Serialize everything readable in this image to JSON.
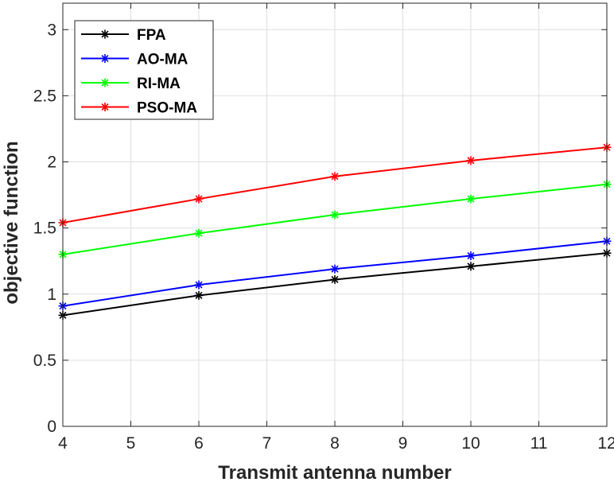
{
  "chart_data": {
    "type": "line",
    "title": "",
    "xlabel": "Transmit antenna number",
    "ylabel": "objective function",
    "xlim": [
      4,
      12
    ],
    "ylim": [
      0,
      3.2
    ],
    "xticks": [
      4,
      5,
      6,
      7,
      8,
      9,
      10,
      11,
      12
    ],
    "yticks": [
      0,
      0.5,
      1,
      1.5,
      2,
      2.5,
      3
    ],
    "xtick_labels": [
      "4",
      "5",
      "6",
      "7",
      "8",
      "9",
      "10",
      "11",
      "12"
    ],
    "ytick_labels": [
      "0",
      "0.5",
      "1",
      "1.5",
      "2",
      "2.5",
      "3"
    ],
    "grid": true,
    "legend_position": "top-left",
    "marker": "asterisk",
    "x": [
      4,
      6,
      8,
      10,
      12
    ],
    "series": [
      {
        "name": "FPA",
        "color": "#000000",
        "values": [
          0.84,
          0.99,
          1.11,
          1.21,
          1.31
        ]
      },
      {
        "name": "AO-MA",
        "color": "#0000ff",
        "values": [
          0.91,
          1.07,
          1.19,
          1.29,
          1.4
        ]
      },
      {
        "name": "RI-MA",
        "color": "#00ff00",
        "values": [
          1.3,
          1.46,
          1.6,
          1.72,
          1.83
        ]
      },
      {
        "name": "PSO-MA",
        "color": "#ff0000",
        "values": [
          1.54,
          1.72,
          1.89,
          2.01,
          2.11
        ]
      }
    ]
  }
}
